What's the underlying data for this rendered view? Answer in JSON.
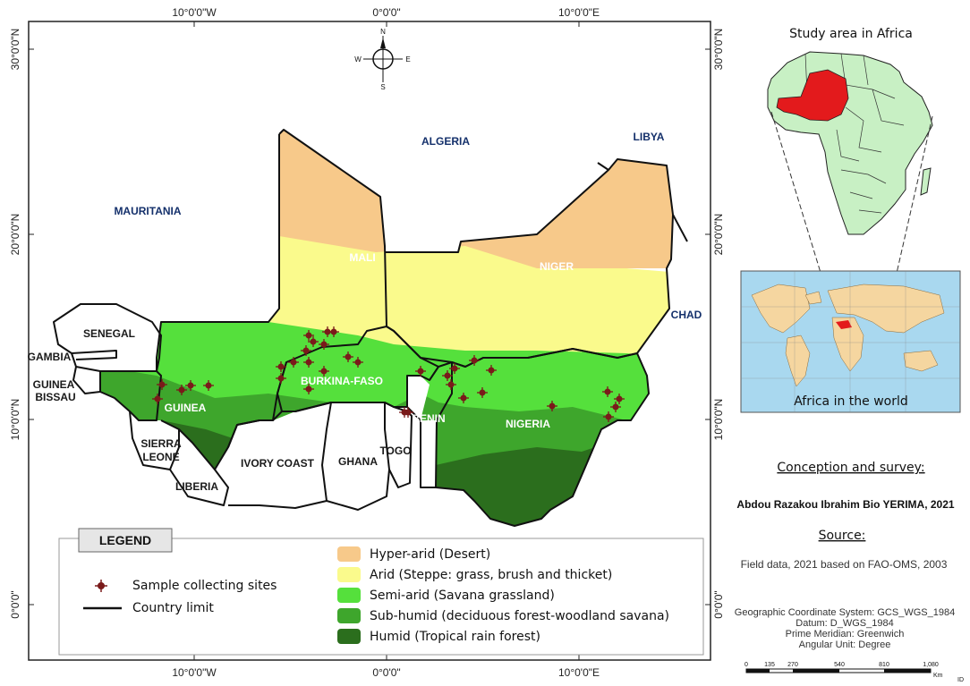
{
  "coordinates": {
    "lon_top": [
      "10°0'0\"W",
      "0°0'0\"",
      "10°0'0\"E"
    ],
    "lon_bottom": [
      "10°0'0\"W",
      "0°0'0\"",
      "10°0'0\"E"
    ],
    "lat_left": [
      "30°0'0\"N",
      "20°0'0\"N",
      "10°0'0\"N",
      "0°0'0\""
    ],
    "lat_right": [
      "30°0'0\"N",
      "20°0'0\"N",
      "10°0'0\"N",
      "0°0'0\""
    ]
  },
  "compass": {
    "n": "N",
    "s": "S",
    "e": "E",
    "w": "W"
  },
  "countries_outside": {
    "algeria": "ALGERIA",
    "libya": "LIBYA",
    "mauritania": "MAURITANIA",
    "chad": "CHAD",
    "senegal": "SENEGAL",
    "gambia": "GAMBIA",
    "guinea_bissau_1": "GUINEA",
    "guinea_bissau_2": "BISSAU",
    "sierra_leone_1": "SIERRA",
    "sierra_leone_2": "LEONE",
    "liberia": "LIBERIA",
    "ivory_coast": "IVORY COAST",
    "ghana": "GHANA",
    "togo": "TOGO"
  },
  "countries_study": {
    "mali": "MALI",
    "niger": "NIGER",
    "burkina_faso": "BURKINA-FASO",
    "guinea": "GUINEA",
    "benin": "BENIN",
    "nigeria": "NIGERIA"
  },
  "legend": {
    "title": "LEGEND",
    "sample_sites": "Sample collecting sites",
    "country_limit": "Country limit",
    "zones": [
      {
        "label": "Hyper-arid (Desert)",
        "color": "#f7c98a"
      },
      {
        "label": "Arid (Steppe: grass, brush and thicket)",
        "color": "#fafa8c"
      },
      {
        "label": "Semi-arid (Savana grassland)",
        "color": "#55e03c"
      },
      {
        "label": "Sub-humid (deciduous forest-woodland savana)",
        "color": "#3ea62c"
      },
      {
        "label": "Humid (Tropical rain forest)",
        "color": "#2b6e1d"
      }
    ]
  },
  "side": {
    "inset_africa_title": "Study area in Africa",
    "inset_world_title": "Africa in the world",
    "conception_title": "Conception and survey:",
    "author": "Abdou Razakou Ibrahim Bio YERIMA, 2021",
    "source_title": "Source:",
    "source_text": "Field data, 2021 based on FAO-OMS, 2003",
    "gcs_lines": [
      "Geographic Coordinate System: GCS_WGS_1984",
      "Datum: D_WGS_1984",
      "Prime Meridian: Greenwich",
      "Angular Unit: Degree"
    ]
  },
  "scale": {
    "ticks": [
      "0",
      "135",
      "270",
      "540",
      "810",
      "1,080"
    ],
    "unit": "Km",
    "id": "ID"
  },
  "colors": {
    "study_red": "#e31a1c",
    "africa_fill": "#c8f0c4",
    "ocean": "#a9d8ef",
    "sample_marker": "#7a1a1a",
    "inset_world_land": "#f5d6a0"
  }
}
